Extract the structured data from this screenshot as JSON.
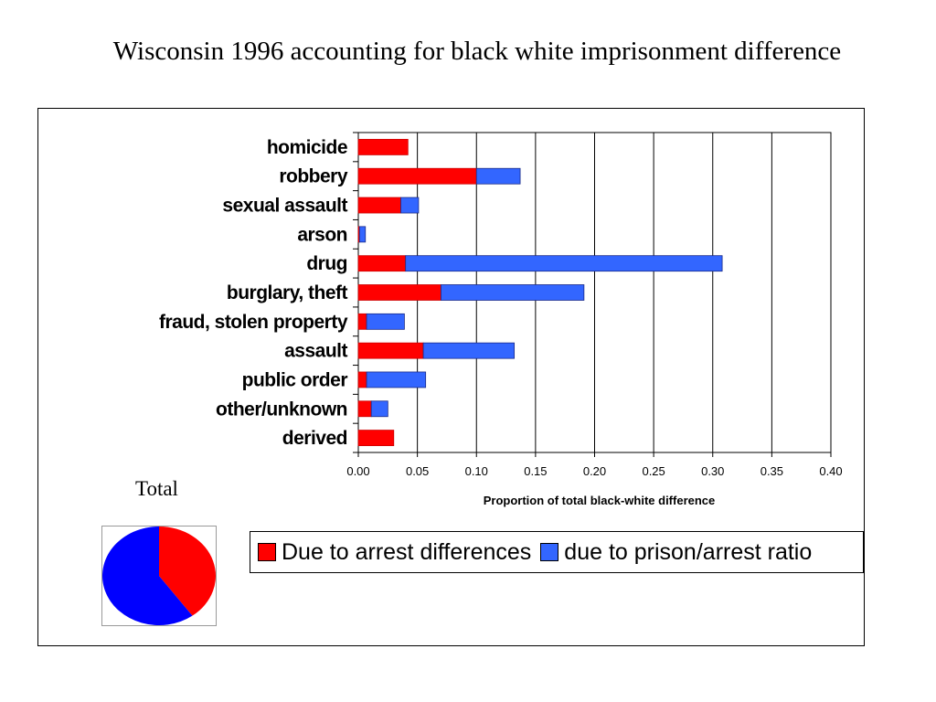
{
  "slide": {
    "title": "Wisconsin 1996 accounting for black white imprisonment difference"
  },
  "chart_data": [
    {
      "type": "bar",
      "orientation": "horizontal",
      "stacked": true,
      "categories": [
        "homicide",
        "robbery",
        "sexual assault",
        "arson",
        "drug",
        "burglary, theft",
        "fraud, stolen property",
        "assault",
        "public order",
        "other/unknown",
        "derived"
      ],
      "series": [
        {
          "name": "Due to arrest differences",
          "color": "#ff0000",
          "values": [
            0.042,
            0.1,
            0.036,
            0.001,
            0.04,
            0.07,
            0.007,
            0.055,
            0.007,
            0.011,
            0.03
          ]
        },
        {
          "name": "due to prison/arrest ratio",
          "color": "#3366ff",
          "values": [
            0.0,
            0.037,
            0.015,
            0.005,
            0.268,
            0.121,
            0.032,
            0.077,
            0.05,
            0.014,
            0.0
          ]
        }
      ],
      "xlabel": "Proportion of total black-white difference",
      "xlim": [
        0,
        0.4
      ],
      "xticks": [
        "0.00",
        "0.05",
        "0.10",
        "0.15",
        "0.20",
        "0.25",
        "0.30",
        "0.35",
        "0.40"
      ],
      "grid": "vertical",
      "legend": "bottom"
    },
    {
      "type": "pie",
      "title": "Total",
      "values": [
        0.4,
        0.6
      ],
      "colors": [
        "#ff0000",
        "#0000ff"
      ]
    }
  ]
}
